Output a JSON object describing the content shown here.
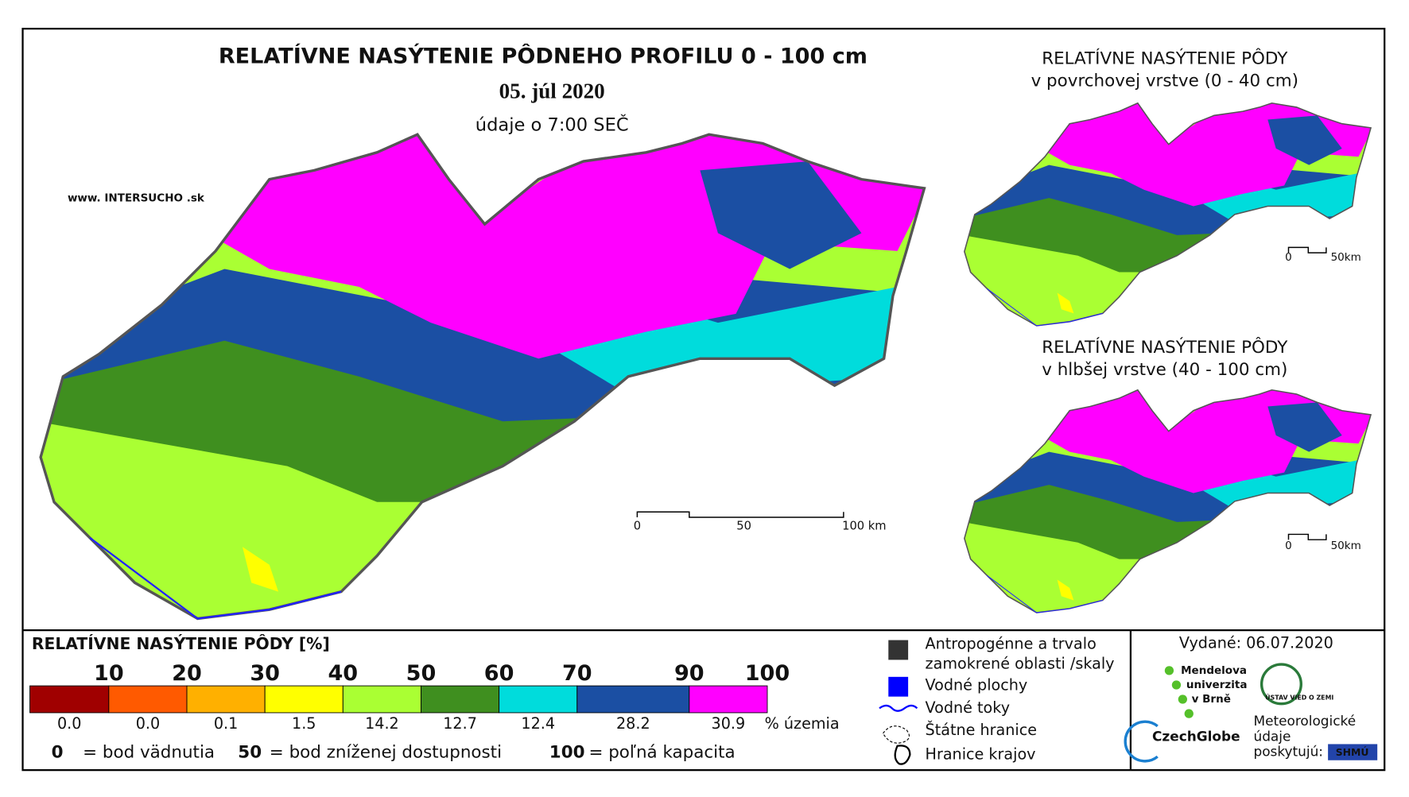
{
  "header": {
    "title": "RELATÍVNE NASÝTENIE PÔDNEHO PROFILU 0 - 100 cm",
    "date": "05. júl 2020",
    "time": "údaje o 7:00 SEČ",
    "website": "www. INTERSUCHO .sk"
  },
  "main_scale": [
    "0",
    "50",
    "100 km"
  ],
  "insets": [
    {
      "title": "RELATÍVNE NASÝTENIE PÔDY",
      "subtitle": "v povrchovej vrstve (0 - 40 cm)",
      "scale": [
        "0",
        "50km"
      ]
    },
    {
      "title": "RELATÍVNE NASÝTENIE PÔDY",
      "subtitle": "v hlbšej vrstve (40 - 100 cm)",
      "scale": [
        "0",
        "50km"
      ]
    }
  ],
  "legend": {
    "title": "RELATÍVNE NASÝTENIE PÔDY [%]",
    "thresholds": [
      "10",
      "20",
      "30",
      "40",
      "50",
      "60",
      "70",
      "90",
      "100"
    ],
    "classes": [
      {
        "color": "#a00000",
        "share": "0.0"
      },
      {
        "color": "#ff5a00",
        "share": "0.0"
      },
      {
        "color": "#ffb000",
        "share": "0.1"
      },
      {
        "color": "#ffff00",
        "share": "1.5"
      },
      {
        "color": "#aaff33",
        "share": "14.2"
      },
      {
        "color": "#3f8f1f",
        "share": "12.7"
      },
      {
        "color": "#00dcdc",
        "share": "12.4"
      },
      {
        "color": "#1b4fa3",
        "share": "28.2"
      },
      {
        "color": "#ff00ff",
        "share": "30.9"
      }
    ],
    "unit": "% územia",
    "notes": [
      {
        "value": "0",
        "text": "= bod vädnutia"
      },
      {
        "value": "50",
        "text": "= bod zníženej dostupnosti"
      },
      {
        "value": "100",
        "text": "= poľná kapacita"
      }
    ]
  },
  "layers": [
    [
      "Antropogénne a trvalo",
      "zamokrené oblasti /skaly"
    ],
    [
      "Vodné plochy"
    ],
    [
      "Vodné toky"
    ],
    [
      "Štátne hranice"
    ],
    [
      "Hranice krajov"
    ]
  ],
  "credits": {
    "issued": "Vydané: 06.07.2020",
    "mendel": [
      "Mendelova",
      "univerzita",
      "v Brně"
    ],
    "czechglobe": "CzechGlobe",
    "ustav": "ÚSTAV VIED O ZEMI",
    "meteo": [
      "Meteorologické",
      "údaje",
      "poskytujú:"
    ],
    "shmu": "SHMÚ"
  }
}
